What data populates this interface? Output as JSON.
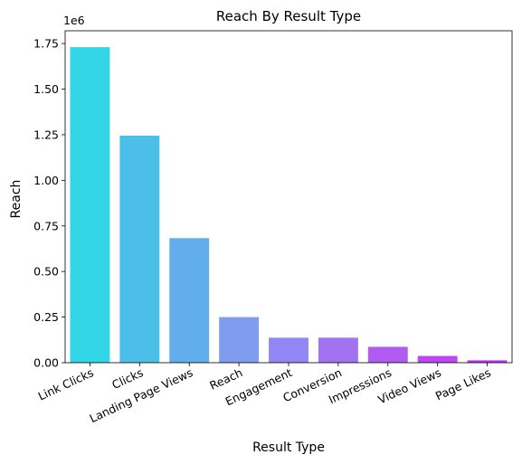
{
  "chart_data": {
    "type": "bar",
    "title": "Reach By Result Type",
    "xlabel": "Result Type",
    "ylabel": "Reach",
    "y_offset_label": "1e6",
    "y_scale": 1000000,
    "ylim": [
      0,
      1820000
    ],
    "yticks": [
      0,
      250000,
      500000,
      750000,
      1000000,
      1250000,
      1500000,
      1750000
    ],
    "ytick_labels": [
      "0.00",
      "0.25",
      "0.50",
      "0.75",
      "1.00",
      "1.25",
      "1.50",
      "1.75"
    ],
    "categories": [
      "Link Clicks",
      "Clicks",
      "Landing Page Views",
      "Reach",
      "Engagement",
      "Conversion",
      "Impressions",
      "Video Views",
      "Page Likes"
    ],
    "values": [
      1730000,
      1245000,
      683000,
      250000,
      137000,
      137000,
      87000,
      37000,
      13000
    ],
    "colors": [
      "#33d6e6",
      "#4cbfe8",
      "#62aeec",
      "#7f9cf0",
      "#9186f4",
      "#a272f0",
      "#b15bf3",
      "#bf45f5",
      "#c830f5"
    ],
    "grid": false,
    "legend": "none"
  }
}
